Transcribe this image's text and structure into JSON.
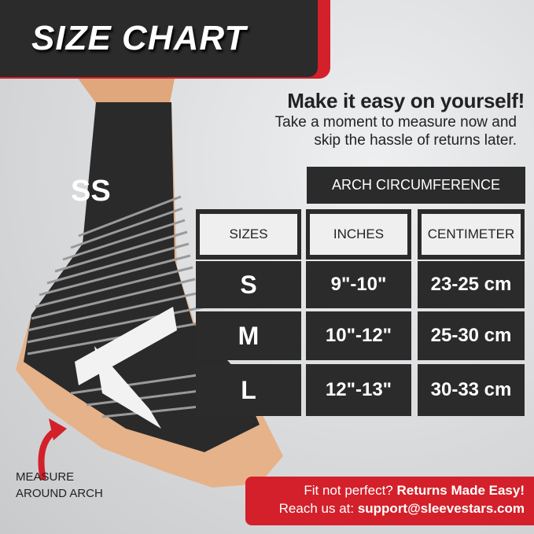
{
  "header": {
    "title": "SIZE CHART"
  },
  "pitch": {
    "headline": "Make it easy on yourself!",
    "line1": "Take a moment to measure now and",
    "line2": "skip the hassle of returns later."
  },
  "table": {
    "group_header": "ARCH CIRCUMFERENCE",
    "columns": [
      "SIZES",
      "INCHES",
      "CENTIMETER"
    ],
    "rows": [
      {
        "size": "S",
        "inches": "9\"-10\"",
        "cm": "23-25 cm"
      },
      {
        "size": "M",
        "inches": "10\"-12\"",
        "cm": "25-30 cm"
      },
      {
        "size": "L",
        "inches": "12\"-13\"",
        "cm": "30-33 cm"
      }
    ]
  },
  "instruction": {
    "line1": "MEASURE",
    "line2": "AROUND ARCH"
  },
  "footer": {
    "line1_regular": "Fit not perfect? ",
    "line1_bold": "Returns Made Easy!",
    "line2_regular": "Reach us at: ",
    "line2_bold": "support@sleevestars.com"
  },
  "colors": {
    "accent": "#d3202a",
    "dark": "#2b2b2b"
  }
}
